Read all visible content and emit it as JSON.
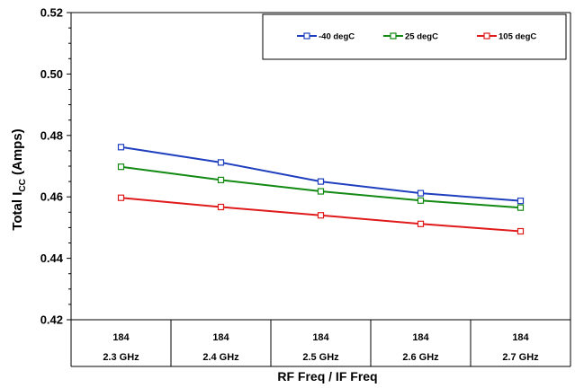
{
  "chart_data": {
    "type": "line",
    "title": "",
    "xlabel": "RF Freq / IF Freq",
    "ylabel_main": "Total I",
    "ylabel_sub": "CC",
    "ylabel_tail": " (Amps)",
    "categories": [
      {
        "top": "184",
        "bottom": "2.3 GHz"
      },
      {
        "top": "184",
        "bottom": "2.4 GHz"
      },
      {
        "top": "184",
        "bottom": "2.5 GHz"
      },
      {
        "top": "184",
        "bottom": "2.6 GHz"
      },
      {
        "top": "184",
        "bottom": "2.7 GHz"
      }
    ],
    "ylim": [
      0.42,
      0.52
    ],
    "yticks": [
      "0.42",
      "0.44",
      "0.46",
      "0.48",
      "0.50",
      "0.52"
    ],
    "grid": false,
    "legend_position": "top-right",
    "series": [
      {
        "name": "-40 degC",
        "color": "#1f3fbf",
        "values": [
          0.4762,
          0.4712,
          0.465,
          0.4612,
          0.4587
        ]
      },
      {
        "name": "25 degC",
        "color": "#138a13",
        "values": [
          0.4698,
          0.4655,
          0.4618,
          0.4588,
          0.4565
        ]
      },
      {
        "name": "105 degC",
        "color": "#e01b1b",
        "values": [
          0.4597,
          0.4567,
          0.454,
          0.4512,
          0.4488
        ]
      }
    ]
  }
}
